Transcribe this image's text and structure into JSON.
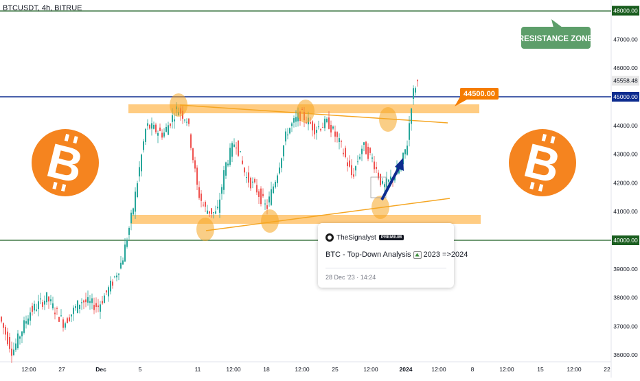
{
  "chart": {
    "symbol": "BTCUSDT, 4h, BITRUE",
    "price_axis_ticks": [
      "48000.00",
      "47000.00",
      "46000.00",
      "45558.48",
      "45000.00",
      "44000.00",
      "43000.00",
      "42000.00",
      "41000.00",
      "40000.00",
      "39000.00",
      "38000.00",
      "37000.00",
      "36000.00"
    ],
    "time_axis_ticks": [
      "12:00",
      "27",
      "Dec",
      "5",
      "11",
      "12:00",
      "18",
      "12:00",
      "25",
      "12:00",
      "2024",
      "12:00",
      "8",
      "12:00",
      "15",
      "12:00",
      "22"
    ],
    "level_lines": [
      {
        "price": 48000,
        "color": "#1b5e20"
      },
      {
        "price": 45000,
        "color": "#0d2c8f"
      },
      {
        "price": 40000,
        "color": "#1b5e20"
      }
    ],
    "current_price": 45558.48
  },
  "annotations": {
    "resistance_label": "RESISTANCE ZONE",
    "price_callout": "44500.00"
  },
  "idea_card": {
    "author": "TheSignalyst",
    "badge": "PREMIUM",
    "title_prefix": "BTC - Top-Down Analysis",
    "title_suffix": "2023 =>2024",
    "date": "28 Dec '23 · 14:24"
  },
  "colors": {
    "orange": "#f5841f",
    "zone": "#ffb74d",
    "green_label": "#5d9e6a",
    "blue_line": "#0d2c8f",
    "green_line": "#1b5e20",
    "bull": "#26a69a",
    "bear": "#ef5350"
  },
  "icons": [
    "bitcoin-logo-left",
    "bitcoin-logo-right",
    "forecast-arrow-icon"
  ]
}
